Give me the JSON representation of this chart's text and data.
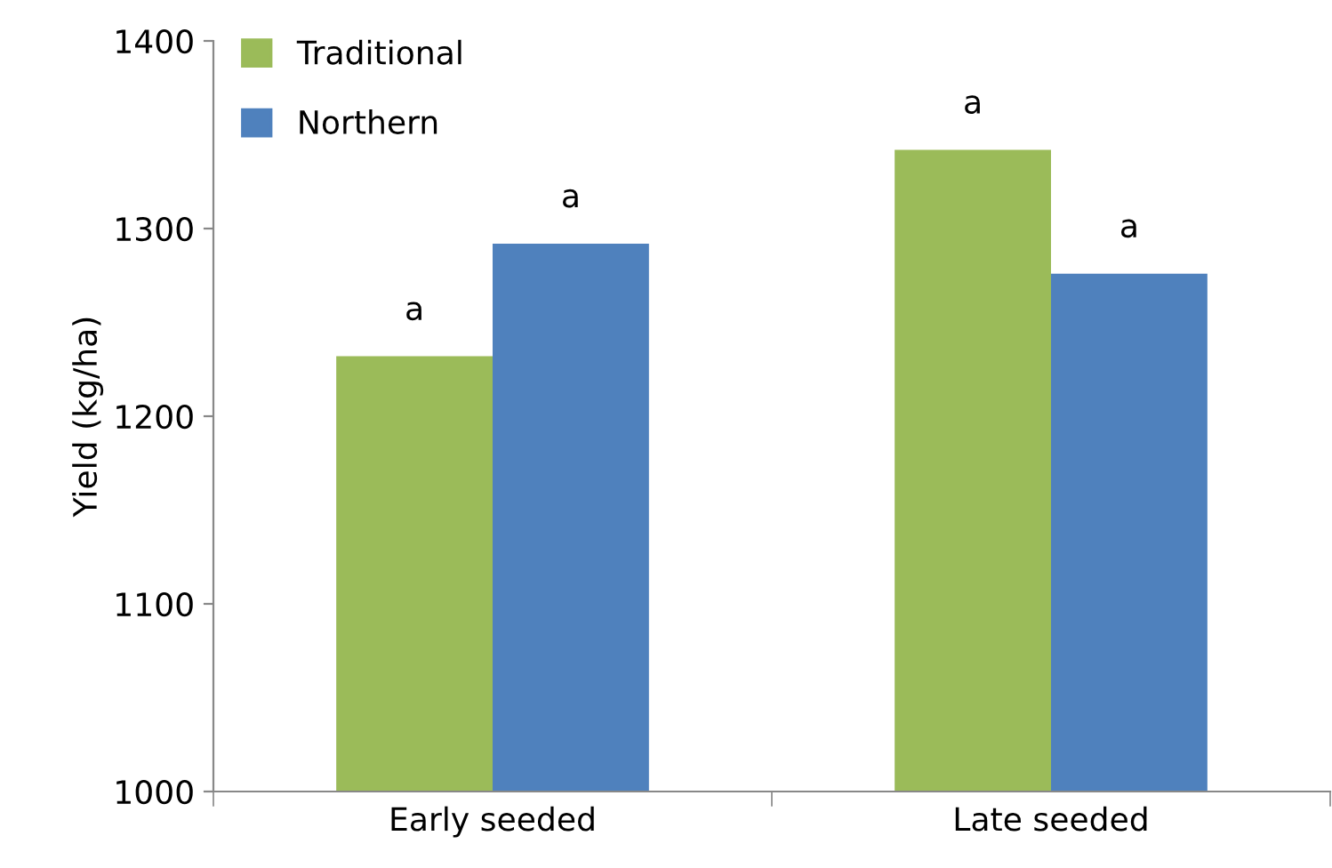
{
  "chart_data": {
    "type": "bar",
    "ylabel": "Yield (kg/ha)",
    "categories": [
      "Early seeded",
      "Late seeded"
    ],
    "series": [
      {
        "name": "Traditional",
        "color": "#9bbb59",
        "values": [
          1232,
          1342
        ],
        "value_labels": [
          "a",
          "a"
        ]
      },
      {
        "name": "Northern",
        "color": "#4f81bd",
        "values": [
          1292,
          1276
        ],
        "value_labels": [
          "a",
          "a"
        ]
      }
    ],
    "ylim": [
      1000,
      1400
    ],
    "yticks": [
      1000,
      1100,
      1200,
      1300,
      1400
    ],
    "grid": false,
    "legend": "top left"
  }
}
